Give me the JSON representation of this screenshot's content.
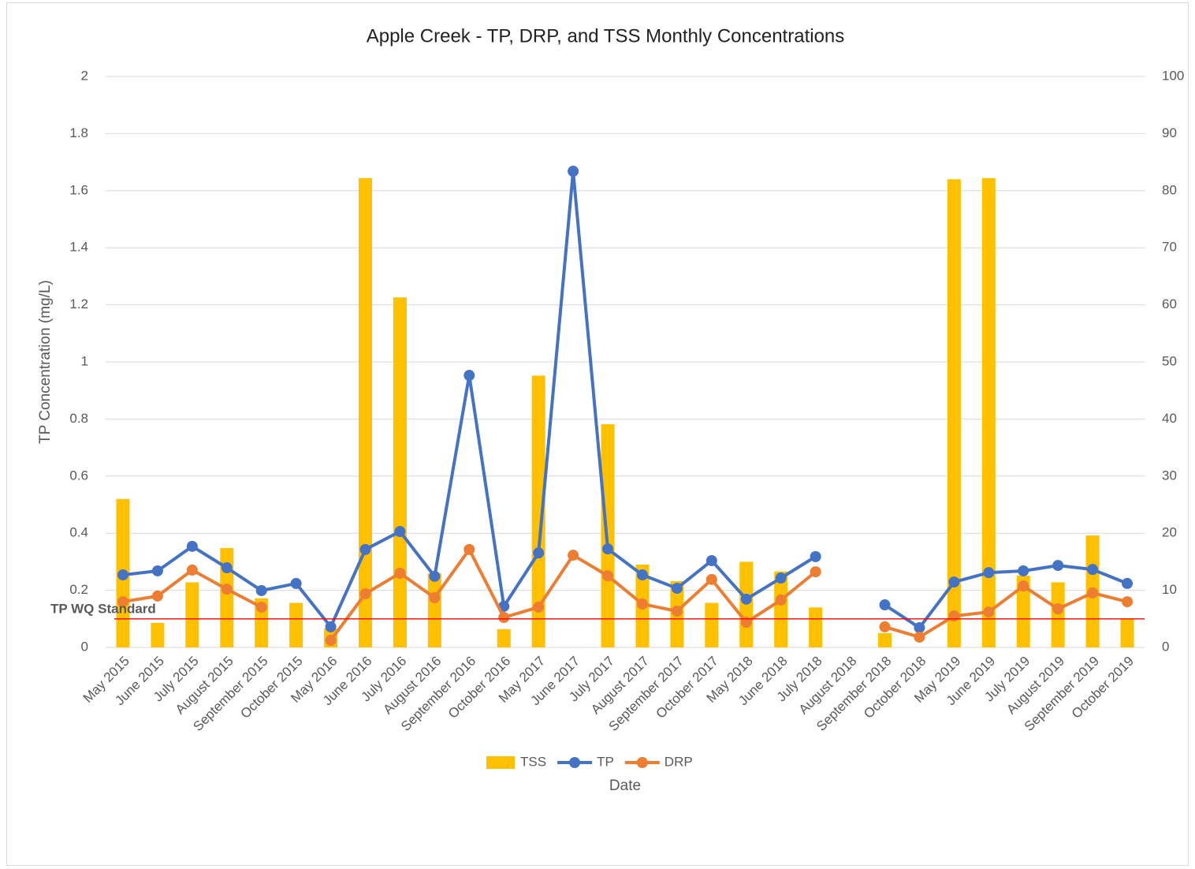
{
  "chart_data": {
    "type": "combo",
    "title": "Apple Creek - TP, DRP, and TSS Monthly Concentrations",
    "x_label": "Date",
    "y_label": "TP Concentration (mg/L)",
    "categories": [
      "May 2015",
      "June 2015",
      "July 2015",
      "August 2015",
      "September 2015",
      "October 2015",
      "May 2016",
      "June 2016",
      "July 2016",
      "August 2016",
      "September 2016",
      "October 2016",
      "May 2017",
      "June 2017",
      "July 2017",
      "August 2017",
      "September 2017",
      "October 2017",
      "May 2018",
      "June 2018",
      "July 2018",
      "August 2018",
      "September 2018",
      "October 2018",
      "May 2019",
      "June 2019",
      "July 2019",
      "August 2019",
      "September 2019",
      "October 2019"
    ],
    "series": [
      {
        "name": "TSS",
        "type": "bar",
        "axis": "y2",
        "color": "#ffc000",
        "values": [
          26,
          4.3,
          11.4,
          17.4,
          8.6,
          7.8,
          3.3,
          82.2,
          61.3,
          13,
          null,
          3.2,
          47.6,
          null,
          39.1,
          14.5,
          11.6,
          7.8,
          15,
          13.3,
          7,
          null,
          2.5,
          null,
          82,
          82.2,
          12.6,
          11.4,
          19.6,
          5
        ]
      },
      {
        "name": "TP",
        "type": "line",
        "color": "#4472c4",
        "values": [
          0.254,
          0.268,
          0.354,
          0.279,
          0.199,
          0.224,
          0.072,
          0.343,
          0.406,
          0.249,
          0.953,
          0.144,
          0.331,
          1.668,
          0.345,
          0.254,
          0.207,
          0.304,
          0.169,
          0.243,
          0.318,
          null,
          0.149,
          0.069,
          0.229,
          0.262,
          0.268,
          0.287,
          0.273,
          0.224
        ]
      },
      {
        "name": "DRP",
        "type": "line",
        "color": "#ed7d31",
        "values": [
          0.16,
          0.18,
          0.271,
          0.204,
          0.141,
          null,
          0.025,
          0.188,
          0.26,
          0.174,
          0.343,
          0.105,
          0.141,
          0.323,
          0.251,
          0.152,
          0.127,
          0.238,
          0.088,
          0.166,
          0.265,
          null,
          0.072,
          0.036,
          0.11,
          0.124,
          0.215,
          0.135,
          0.191,
          0.16
        ]
      }
    ],
    "ylim": [
      0,
      2
    ],
    "yticks": [
      0,
      0.2,
      0.4,
      0.6,
      0.8,
      1,
      1.2,
      1.4,
      1.6,
      1.8,
      2
    ],
    "y2lim": [
      0,
      100
    ],
    "y2ticks": [
      0,
      10,
      20,
      30,
      40,
      50,
      60,
      70,
      80,
      90,
      100
    ],
    "grid": true,
    "legend": "bottom",
    "reference_line": {
      "value": 0.1,
      "label": "TP WQ Standard",
      "color": "#ff0000"
    }
  }
}
